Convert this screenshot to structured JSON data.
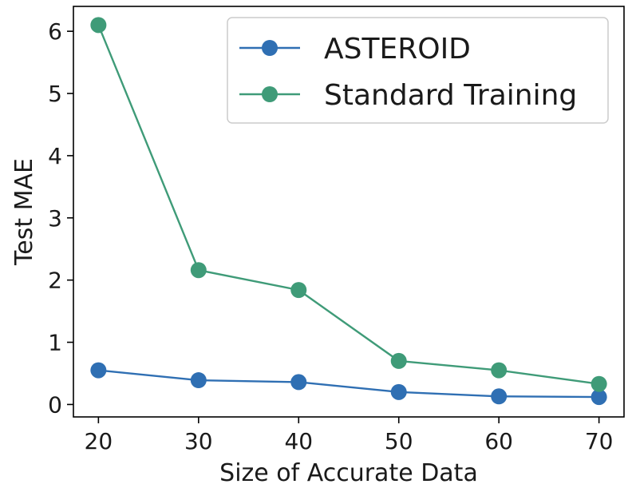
{
  "chart_data": {
    "type": "line",
    "xlabel": "Size of Accurate Data",
    "ylabel": "Test MAE",
    "x": [
      20,
      30,
      40,
      50,
      60,
      70
    ],
    "xticks": [
      20,
      30,
      40,
      50,
      60,
      70
    ],
    "yticks": [
      0,
      1,
      2,
      3,
      4,
      5,
      6
    ],
    "xlim": [
      17.5,
      72.5
    ],
    "ylim": [
      -0.2,
      6.4
    ],
    "grid": false,
    "legend_position": "top-right",
    "series": [
      {
        "name": "ASTEROID",
        "color": "#2f6fb3",
        "values": [
          0.55,
          0.39,
          0.36,
          0.2,
          0.13,
          0.12
        ]
      },
      {
        "name": "Standard Training",
        "color": "#3f9b78",
        "values": [
          6.1,
          2.16,
          1.84,
          0.7,
          0.55,
          0.33
        ]
      }
    ]
  }
}
